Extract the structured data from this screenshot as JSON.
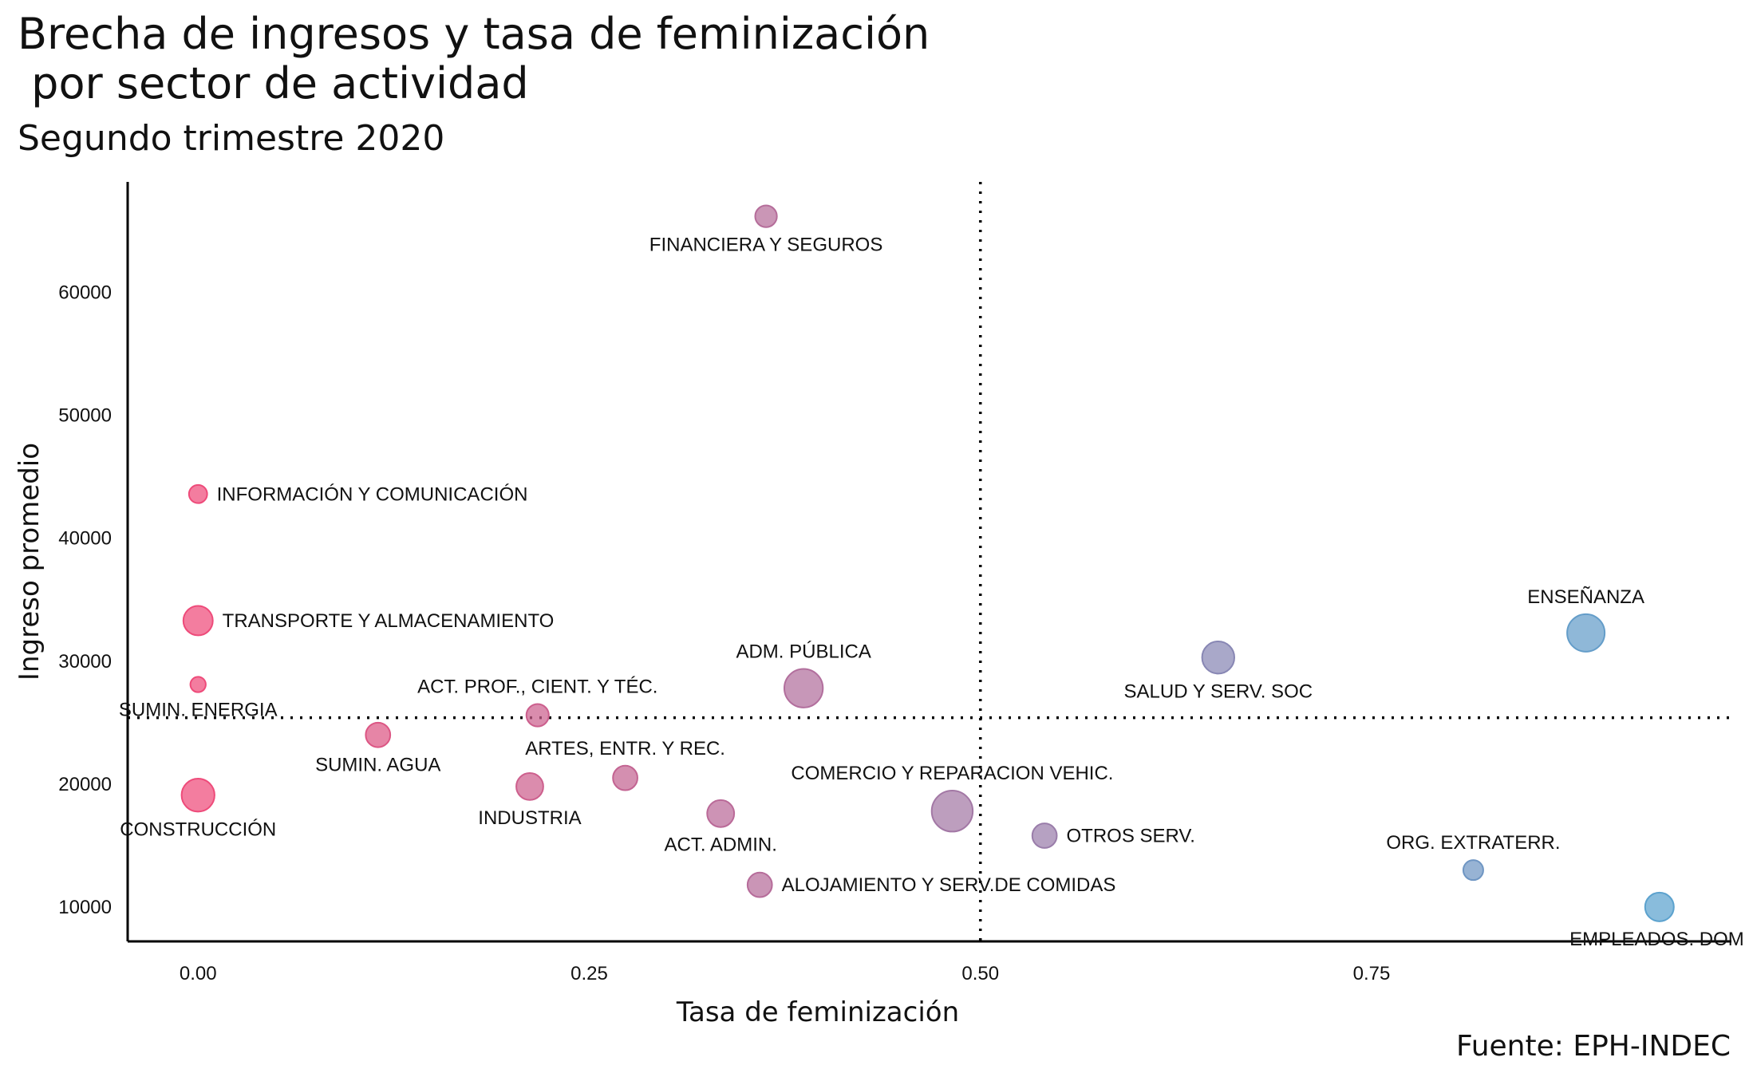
{
  "title": "Brecha de ingresos y tasa de feminización\n por sector de actividad",
  "subtitle": "Segundo trimestre 2020",
  "caption": "Fuente: EPH-INDEC",
  "chart_data": {
    "type": "scatter",
    "title": "Brecha de ingresos y tasa de feminización\n por sector de actividad",
    "subtitle": "Segundo trimestre 2020",
    "xlabel": "Tasa de feminización",
    "ylabel": "Ingreso promedio",
    "xlim": [
      -0.045,
      0.98
    ],
    "ylim": [
      7200,
      69000
    ],
    "xticks": [
      0.0,
      0.25,
      0.5,
      0.75
    ],
    "xtick_labels": [
      "0.00",
      "0.25",
      "0.50",
      "0.75"
    ],
    "yticks": [
      10000,
      20000,
      30000,
      40000,
      50000,
      60000
    ],
    "ytick_labels": [
      "10000",
      "20000",
      "30000",
      "40000",
      "50000",
      "60000"
    ],
    "grid": false,
    "legend": "none",
    "color_scale": {
      "low": "#ee4b7a",
      "high": "#5aa3cf"
    },
    "reference_lines": {
      "vertical_x": 0.5,
      "horizontal_y": 25400,
      "style": "dotted"
    },
    "points": [
      {
        "label": "FINANCIERA Y  SEGUROS",
        "x": 0.363,
        "y": 66200,
        "size": 0.3,
        "label_pos": "below"
      },
      {
        "label": "INFORMACIÓN Y  COMUNICACIÓN",
        "x": 0.0,
        "y": 43600,
        "size": 0.2,
        "label_pos": "right"
      },
      {
        "label": "TRANSPORTE Y  ALMACENAMIENTO",
        "x": 0.0,
        "y": 33300,
        "size": 0.52,
        "label_pos": "right"
      },
      {
        "label": "SUMIN. ENERGIA",
        "x": 0.0,
        "y": 28100,
        "size": 0.12,
        "label_pos": "below"
      },
      {
        "label": "CONSTRUCCIÓN",
        "x": 0.0,
        "y": 19100,
        "size": 0.62,
        "label_pos": "below"
      },
      {
        "label": "SUMIN. AGUA",
        "x": 0.115,
        "y": 24000,
        "size": 0.38,
        "label_pos": "below"
      },
      {
        "label": "ACT.  PROF.,  CIENT. Y TÉC.",
        "x": 0.217,
        "y": 25600,
        "size": 0.32,
        "label_pos": "above"
      },
      {
        "label": "INDUSTRIA",
        "x": 0.212,
        "y": 19800,
        "size": 0.45,
        "label_pos": "below"
      },
      {
        "label": "ARTES, ENTR. Y REC.",
        "x": 0.273,
        "y": 20500,
        "size": 0.38,
        "label_pos": "above"
      },
      {
        "label": "ACT. ADMIN.",
        "x": 0.334,
        "y": 17600,
        "size": 0.45,
        "label_pos": "below"
      },
      {
        "label": "ADM. PÚBLICA",
        "x": 0.387,
        "y": 27800,
        "size": 0.78,
        "label_pos": "above"
      },
      {
        "label": "ALOJAMIENTO Y  SERV.DE COMIDAS",
        "x": 0.359,
        "y": 11800,
        "size": 0.38,
        "label_pos": "right"
      },
      {
        "label": "COMERCIO Y  REPARACION  VEHIC.",
        "x": 0.482,
        "y": 17800,
        "size": 0.85,
        "label_pos": "above"
      },
      {
        "label": "OTROS SERV.",
        "x": 0.541,
        "y": 15800,
        "size": 0.38,
        "label_pos": "right"
      },
      {
        "label": "SALUD Y SERV. SOC",
        "x": 0.652,
        "y": 30300,
        "size": 0.6,
        "label_pos": "below"
      },
      {
        "label": "ORG. EXTRATERR.",
        "x": 0.815,
        "y": 13000,
        "size": 0.25,
        "label_pos": "above"
      },
      {
        "label": "ENSEÑANZA",
        "x": 0.887,
        "y": 32300,
        "size": 0.75,
        "label_pos": "above"
      },
      {
        "label": "EMPLEADOS. DOM.",
        "x": 0.934,
        "y": 10000,
        "size": 0.5,
        "label_pos": "below"
      }
    ]
  }
}
